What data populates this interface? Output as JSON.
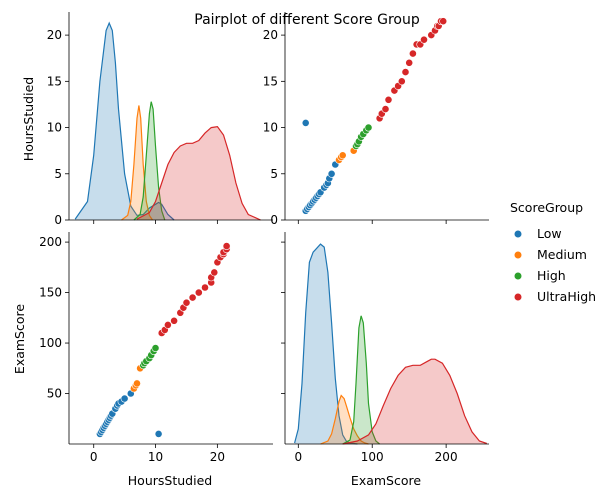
{
  "title": "Pairplot of different Score Group",
  "legend": {
    "title": "ScoreGroup",
    "placement": "right",
    "entries": [
      {
        "name": "Low",
        "color": "#1f77b4"
      },
      {
        "name": "Medium",
        "color": "#ff7f0e"
      },
      {
        "name": "High",
        "color": "#2ca02c"
      },
      {
        "name": "UltraHigh",
        "color": "#d62728"
      }
    ]
  },
  "chart_data": [
    {
      "type": "area",
      "panel": "HoursStudied vs HoursStudied (KDE)",
      "x_variable": "HoursStudied",
      "y_variable": "HoursStudied",
      "xlim": [
        -4,
        29
      ],
      "ylim": [
        0,
        22.5
      ],
      "y_ticks": [
        0,
        5,
        10,
        15,
        20
      ],
      "series": [
        {
          "name": "Low",
          "x": [
            -3,
            -1,
            0,
            1,
            2,
            2.5,
            3,
            3.5,
            4,
            5,
            6,
            7,
            8,
            9,
            10,
            10.5,
            11,
            12,
            13
          ],
          "values": [
            0.1,
            2,
            7,
            15,
            20.5,
            21.3,
            20.5,
            17,
            12,
            5,
            1.5,
            0.5,
            0.6,
            1.3,
            1.7,
            1.9,
            1.7,
            0.6,
            0
          ]
        },
        {
          "name": "Medium",
          "x": [
            4.5,
            5.5,
            6,
            6.5,
            7,
            7.3,
            7.6,
            8,
            8.5,
            9,
            9.5
          ],
          "values": [
            0,
            0.5,
            2,
            6,
            11,
            12.4,
            11,
            6,
            2,
            0.5,
            0
          ]
        },
        {
          "name": "High",
          "x": [
            6.5,
            7.5,
            8,
            8.5,
            9,
            9.3,
            9.6,
            10,
            10.5,
            11,
            11.5
          ],
          "values": [
            0,
            0.6,
            2.5,
            7,
            11.5,
            12.8,
            12,
            8,
            3.5,
            1,
            0
          ]
        },
        {
          "name": "UltraHigh",
          "x": [
            7,
            9,
            10,
            11,
            12,
            13,
            14,
            15,
            16,
            17,
            18,
            19,
            20,
            21,
            22,
            23,
            24,
            25,
            27
          ],
          "values": [
            0.1,
            0.8,
            2,
            4,
            6,
            7.3,
            8,
            8.3,
            8.3,
            8.6,
            9.4,
            10,
            10.1,
            9.2,
            7,
            4,
            1.8,
            0.6,
            0
          ]
        }
      ]
    },
    {
      "type": "scatter",
      "panel": "ExamScore (x) vs HoursStudied (y)",
      "x_variable": "ExamScore",
      "y_variable": "HoursStudied",
      "xlim": [
        -18,
        258
      ],
      "ylim": [
        0,
        22.5
      ],
      "y_ticks": [
        0,
        5,
        10,
        15,
        20
      ],
      "series": [
        {
          "name": "Low",
          "x": [
            10,
            12,
            14,
            16,
            18,
            20,
            22,
            24,
            26,
            28,
            30,
            35,
            38,
            40,
            42,
            45,
            50,
            10
          ],
          "y": [
            1.0,
            1.2,
            1.4,
            1.6,
            1.8,
            2.0,
            2.2,
            2.4,
            2.6,
            2.8,
            3.0,
            3.5,
            3.8,
            4.0,
            4.5,
            5.0,
            6.0,
            10.5
          ]
        },
        {
          "name": "Medium",
          "x": [
            55,
            58,
            60,
            75
          ],
          "y": [
            6.5,
            6.8,
            7.0,
            7.5
          ]
        },
        {
          "name": "High",
          "x": [
            78,
            80,
            82,
            85,
            88,
            92,
            95
          ],
          "y": [
            8.0,
            8.2,
            8.5,
            9.0,
            9.3,
            9.7,
            10.0
          ]
        },
        {
          "name": "UltraHigh",
          "x": [
            110,
            113,
            118,
            122,
            130,
            135,
            140,
            145,
            150,
            155,
            160,
            165,
            170,
            180,
            185,
            188,
            190,
            193,
            196
          ],
          "y": [
            11.0,
            11.5,
            12.0,
            13.0,
            14.0,
            14.5,
            15.0,
            16.0,
            17.0,
            18.0,
            19.0,
            19.0,
            19.5,
            20.0,
            20.5,
            21.0,
            21.0,
            21.5,
            21.5
          ]
        }
      ]
    },
    {
      "type": "scatter",
      "panel": "HoursStudied (x) vs ExamScore (y)",
      "x_variable": "HoursStudied",
      "y_variable": "ExamScore",
      "xlim": [
        -4,
        29
      ],
      "ylim": [
        0,
        210
      ],
      "x_ticks": [
        0,
        10,
        20
      ],
      "y_ticks": [
        50,
        100,
        150,
        200
      ],
      "series": [
        {
          "name": "Low",
          "x": [
            1.0,
            1.2,
            1.4,
            1.6,
            1.8,
            2.0,
            2.2,
            2.4,
            2.6,
            2.8,
            3.0,
            3.5,
            3.8,
            4.0,
            4.5,
            5.0,
            6.0,
            10.5
          ],
          "y": [
            10,
            12,
            14,
            16,
            18,
            20,
            22,
            24,
            26,
            28,
            30,
            35,
            38,
            40,
            42,
            45,
            50,
            10
          ]
        },
        {
          "name": "Medium",
          "x": [
            6.5,
            6.8,
            7.0,
            7.5
          ],
          "y": [
            55,
            58,
            60,
            75
          ]
        },
        {
          "name": "High",
          "x": [
            8.0,
            8.2,
            8.5,
            9.0,
            9.3,
            9.7,
            10.0
          ],
          "y": [
            78,
            80,
            82,
            85,
            88,
            92,
            95
          ]
        },
        {
          "name": "UltraHigh",
          "x": [
            11.0,
            11.5,
            12.0,
            13.0,
            14.0,
            14.5,
            15.0,
            16.0,
            17.0,
            18.0,
            19.0,
            19.0,
            19.5,
            20.0,
            20.5,
            21.0,
            21.0,
            21.5,
            21.5
          ],
          "y": [
            110,
            113,
            118,
            122,
            130,
            135,
            140,
            145,
            150,
            155,
            160,
            165,
            170,
            180,
            185,
            188,
            190,
            193,
            196
          ]
        }
      ]
    },
    {
      "type": "area",
      "panel": "ExamScore vs ExamScore (KDE)",
      "x_variable": "ExamScore",
      "y_variable": "ExamScore",
      "xlim": [
        -18,
        258
      ],
      "ylim": [
        0,
        210
      ],
      "x_ticks": [
        0,
        100,
        200
      ],
      "series": [
        {
          "name": "Low",
          "x": [
            -5,
            0,
            5,
            10,
            15,
            20,
            25,
            30,
            35,
            40,
            45,
            50,
            55,
            60,
            65,
            70,
            80
          ],
          "values": [
            1,
            15,
            60,
            130,
            180,
            190,
            194,
            198,
            195,
            170,
            120,
            65,
            28,
            9,
            3,
            1,
            0
          ]
        },
        {
          "name": "Medium",
          "x": [
            30,
            40,
            45,
            50,
            55,
            58,
            62,
            65,
            70,
            75,
            80,
            85,
            90,
            95
          ],
          "values": [
            0,
            3,
            10,
            25,
            42,
            48,
            45,
            38,
            26,
            15,
            8,
            3,
            1,
            0
          ]
        },
        {
          "name": "High",
          "x": [
            60,
            70,
            75,
            78,
            82,
            85,
            88,
            92,
            95,
            100,
            105,
            110
          ],
          "values": [
            0,
            4,
            22,
            60,
            115,
            127,
            120,
            80,
            40,
            12,
            3,
            0
          ]
        },
        {
          "name": "UltraHigh",
          "x": [
            60,
            80,
            95,
            105,
            115,
            125,
            135,
            145,
            155,
            165,
            175,
            180,
            185,
            195,
            205,
            215,
            225,
            235,
            245,
            255
          ],
          "values": [
            0,
            3,
            9,
            20,
            38,
            55,
            68,
            76,
            78,
            78,
            82,
            84,
            84,
            80,
            68,
            50,
            28,
            12,
            3,
            0.5
          ]
        }
      ]
    }
  ],
  "axes": {
    "row_labels": [
      "HoursStudied",
      "ExamScore"
    ],
    "col_labels": [
      "HoursStudied",
      "ExamScore"
    ]
  }
}
